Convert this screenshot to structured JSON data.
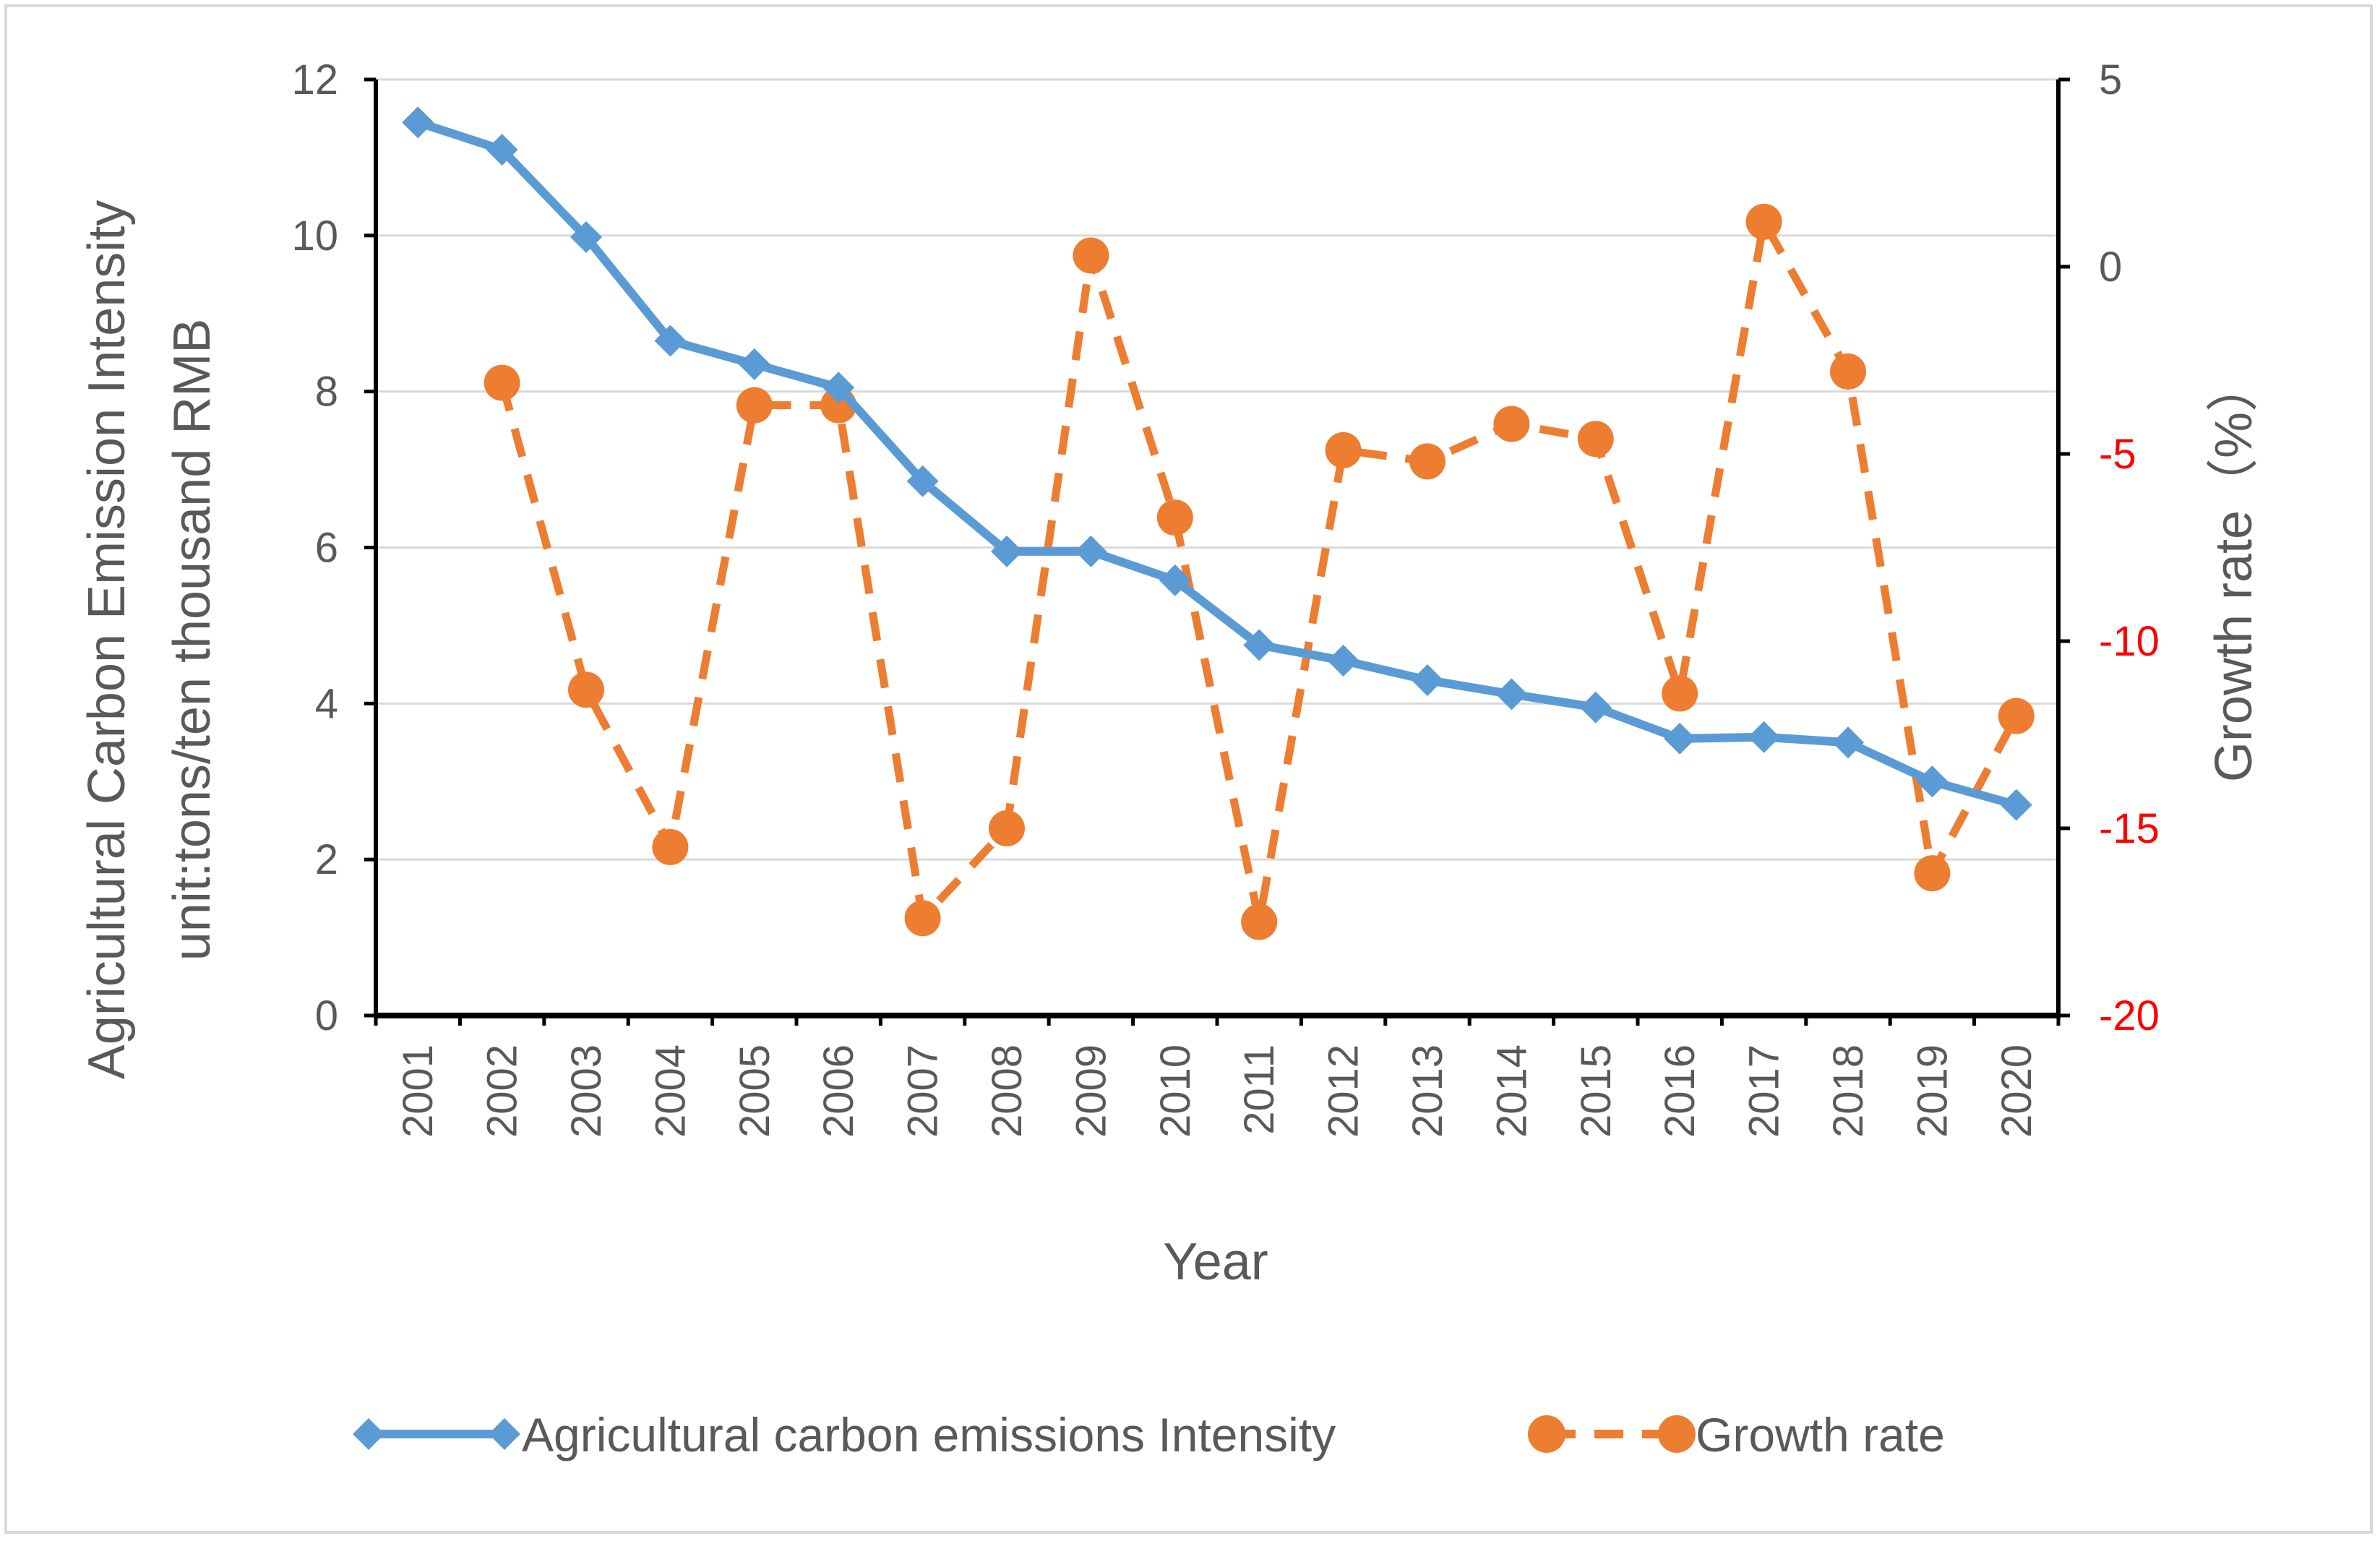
{
  "colors": {
    "intensity": "#5b9bd5",
    "growth": "#ed7d31",
    "axis": "#000000",
    "grid": "#d9d9d9",
    "text": "#595959",
    "negative": "#ff0000"
  },
  "chart_data": {
    "type": "line",
    "title": "",
    "xlabel": "Year",
    "ylabel_left_line1": "Agricultural Carbon Emission Intensity",
    "ylabel_left_line2": "unit:tons/ten thousand RMB",
    "ylabel_right": "Growth rate（%）",
    "categories": [
      "2001",
      "2002",
      "2003",
      "2004",
      "2005",
      "2006",
      "2007",
      "2008",
      "2009",
      "2010",
      "2011",
      "2012",
      "2013",
      "2014",
      "2015",
      "2016",
      "2017",
      "2018",
      "2019",
      "2020"
    ],
    "ylim_left": [
      0,
      12
    ],
    "yticks_left": [
      "0",
      "2",
      "4",
      "6",
      "8",
      "10",
      "12"
    ],
    "ylim_right": [
      -20,
      5
    ],
    "yticks_right": [
      "-20",
      "-15",
      "-10",
      "-5",
      "0",
      "5"
    ],
    "series": [
      {
        "name": "Agricultural carbon emissions Intensity",
        "axis": "left",
        "marker": "diamond",
        "style": "solid",
        "values": [
          11.45,
          11.1,
          9.98,
          8.65,
          8.35,
          8.05,
          6.85,
          5.95,
          5.95,
          5.58,
          4.75,
          4.55,
          4.3,
          4.12,
          3.95,
          3.55,
          3.57,
          3.5,
          3.0,
          2.7
        ]
      },
      {
        "name": "Growth rate",
        "axis": "right",
        "marker": "circle",
        "style": "dashed",
        "values": [
          null,
          -3.1,
          -11.3,
          -15.5,
          -3.7,
          -3.7,
          -17.4,
          -15.0,
          0.3,
          -6.7,
          -17.5,
          -4.9,
          -5.2,
          -4.2,
          -4.6,
          -11.4,
          1.2,
          -2.8,
          -16.2,
          -12.0
        ]
      }
    ],
    "legend": {
      "position": "bottom",
      "items": [
        "Agricultural carbon emissions Intensity",
        "Growth rate"
      ]
    }
  }
}
